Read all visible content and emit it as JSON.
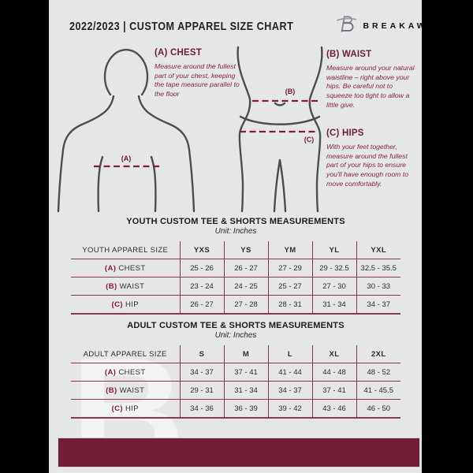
{
  "header": {
    "title": "2022/2023  |  CUSTOM APPAREL SIZE CHART",
    "brand": "BREAKAWAY"
  },
  "diagram": {
    "chest_label": "(A)",
    "waist_label": "(B)",
    "hips_label": "(C)"
  },
  "measurements": {
    "chest": {
      "heading": "(A) CHEST",
      "description": "Measure around the fullest part of your chest, keeping the tape measure parallel to the floor"
    },
    "waist": {
      "heading": "(B) WAIST",
      "description": "Measure around your natural waistline – right above your hips. Be careful not to squeeze too tight to allow a little give."
    },
    "hips": {
      "heading": "(C) HIPS",
      "description": "With your feet together, measure around the fullest part of your hips to ensure you'll have enough room to move comfortably."
    }
  },
  "youth_table": {
    "title": "YOUTH CUSTOM TEE & SHORTS MEASUREMENTS",
    "unit": "Unit: Inches",
    "header": [
      "YOUTH APPAREL SIZE",
      "YXS",
      "YS",
      "YM",
      "YL",
      "YXL"
    ],
    "rows": [
      {
        "prefix": "(A)",
        "label": "CHEST",
        "values": [
          "25 - 26",
          "26 - 27",
          "27 - 29",
          "29 - 32.5",
          "32.5 - 35.5"
        ]
      },
      {
        "prefix": "(B)",
        "label": "WAIST",
        "values": [
          "23 - 24",
          "24 - 25",
          "25 - 27",
          "27 - 30",
          "30 - 33"
        ]
      },
      {
        "prefix": "(C)",
        "label": "HIP",
        "values": [
          "26 - 27",
          "27 - 28",
          "28 - 31",
          "31 - 34",
          "34 - 37"
        ]
      }
    ]
  },
  "adult_table": {
    "title": "ADULT CUSTOM TEE & SHORTS MEASUREMENTS",
    "unit": "Unit: Inches",
    "header": [
      "ADULT APPAREL SIZE",
      "S",
      "M",
      "L",
      "XL",
      "2XL"
    ],
    "rows": [
      {
        "prefix": "(A)",
        "label": "CHEST",
        "values": [
          "34 - 37",
          "37 - 41",
          "41 - 44",
          "44 - 48",
          "48 - 52"
        ]
      },
      {
        "prefix": "(B)",
        "label": "WAIST",
        "values": [
          "29 - 31",
          "31 - 34",
          "34 - 37",
          "37 - 41",
          "41 - 45.5"
        ]
      },
      {
        "prefix": "(C)",
        "label": "HIP",
        "values": [
          "34 - 36",
          "36 - 39",
          "39 - 42",
          "43 - 46",
          "46 - 50"
        ]
      }
    ]
  },
  "watermark": "B",
  "colors": {
    "background": "#e5e6e7",
    "side_bars": "#000000",
    "maroon_accent": "#8b1c38",
    "footer_bar": "#731e37",
    "table_border": "#8f3550"
  }
}
